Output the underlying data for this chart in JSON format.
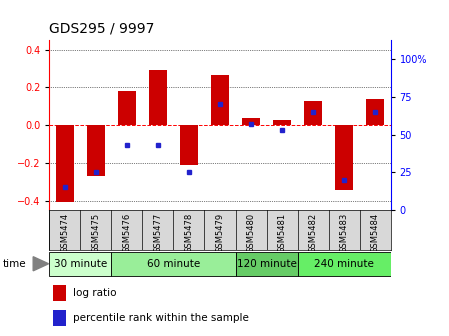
{
  "title": "GDS295 / 9997",
  "samples": [
    "GSM5474",
    "GSM5475",
    "GSM5476",
    "GSM5477",
    "GSM5478",
    "GSM5479",
    "GSM5480",
    "GSM5481",
    "GSM5482",
    "GSM5483",
    "GSM5484"
  ],
  "log_ratio": [
    -0.41,
    -0.27,
    0.18,
    0.295,
    -0.21,
    0.265,
    0.04,
    0.03,
    0.13,
    -0.345,
    0.14
  ],
  "percentile": [
    15,
    25,
    43,
    43,
    25,
    70,
    57,
    53,
    65,
    20,
    65
  ],
  "groups": [
    {
      "label": "30 minute",
      "indices": [
        0,
        1
      ],
      "color": "#ccffcc"
    },
    {
      "label": "60 minute",
      "indices": [
        2,
        3,
        4,
        5
      ],
      "color": "#99ee99"
    },
    {
      "label": "120 minute",
      "indices": [
        6,
        7
      ],
      "color": "#66cc66"
    },
    {
      "label": "240 minute",
      "indices": [
        8,
        9,
        10
      ],
      "color": "#66ee66"
    }
  ],
  "bar_color": "#cc0000",
  "dot_color": "#2222cc",
  "ylim": [
    -0.45,
    0.45
  ],
  "y2lim": [
    0,
    112.5
  ],
  "yticks": [
    -0.4,
    -0.2,
    0.0,
    0.2,
    0.4
  ],
  "y2ticks": [
    0,
    25,
    50,
    75,
    100
  ],
  "background_fig": "#ffffff",
  "title_fontsize": 10,
  "tick_fontsize": 7,
  "bar_width": 0.6
}
